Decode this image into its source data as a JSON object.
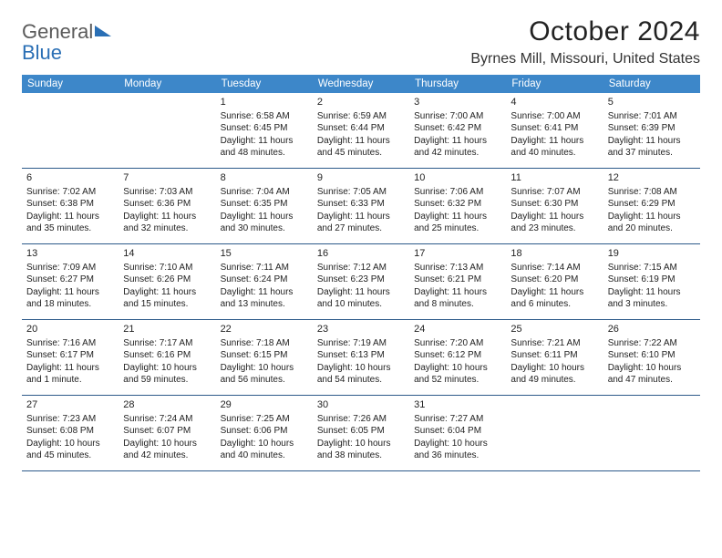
{
  "logo": {
    "text1": "General",
    "text2": "Blue"
  },
  "title": "October 2024",
  "location": "Byrnes Mill, Missouri, United States",
  "colors": {
    "header_bg": "#3d87c9",
    "header_fg": "#ffffff",
    "row_border": "#2d5a8a",
    "logo_gray": "#5a5a5a",
    "logo_blue": "#2a6fb5"
  },
  "dow": [
    "Sunday",
    "Monday",
    "Tuesday",
    "Wednesday",
    "Thursday",
    "Friday",
    "Saturday"
  ],
  "weeks": [
    [
      null,
      null,
      {
        "n": "1",
        "sr": "6:58 AM",
        "ss": "6:45 PM",
        "dl": "11 hours and 48 minutes."
      },
      {
        "n": "2",
        "sr": "6:59 AM",
        "ss": "6:44 PM",
        "dl": "11 hours and 45 minutes."
      },
      {
        "n": "3",
        "sr": "7:00 AM",
        "ss": "6:42 PM",
        "dl": "11 hours and 42 minutes."
      },
      {
        "n": "4",
        "sr": "7:00 AM",
        "ss": "6:41 PM",
        "dl": "11 hours and 40 minutes."
      },
      {
        "n": "5",
        "sr": "7:01 AM",
        "ss": "6:39 PM",
        "dl": "11 hours and 37 minutes."
      }
    ],
    [
      {
        "n": "6",
        "sr": "7:02 AM",
        "ss": "6:38 PM",
        "dl": "11 hours and 35 minutes."
      },
      {
        "n": "7",
        "sr": "7:03 AM",
        "ss": "6:36 PM",
        "dl": "11 hours and 32 minutes."
      },
      {
        "n": "8",
        "sr": "7:04 AM",
        "ss": "6:35 PM",
        "dl": "11 hours and 30 minutes."
      },
      {
        "n": "9",
        "sr": "7:05 AM",
        "ss": "6:33 PM",
        "dl": "11 hours and 27 minutes."
      },
      {
        "n": "10",
        "sr": "7:06 AM",
        "ss": "6:32 PM",
        "dl": "11 hours and 25 minutes."
      },
      {
        "n": "11",
        "sr": "7:07 AM",
        "ss": "6:30 PM",
        "dl": "11 hours and 23 minutes."
      },
      {
        "n": "12",
        "sr": "7:08 AM",
        "ss": "6:29 PM",
        "dl": "11 hours and 20 minutes."
      }
    ],
    [
      {
        "n": "13",
        "sr": "7:09 AM",
        "ss": "6:27 PM",
        "dl": "11 hours and 18 minutes."
      },
      {
        "n": "14",
        "sr": "7:10 AM",
        "ss": "6:26 PM",
        "dl": "11 hours and 15 minutes."
      },
      {
        "n": "15",
        "sr": "7:11 AM",
        "ss": "6:24 PM",
        "dl": "11 hours and 13 minutes."
      },
      {
        "n": "16",
        "sr": "7:12 AM",
        "ss": "6:23 PM",
        "dl": "11 hours and 10 minutes."
      },
      {
        "n": "17",
        "sr": "7:13 AM",
        "ss": "6:21 PM",
        "dl": "11 hours and 8 minutes."
      },
      {
        "n": "18",
        "sr": "7:14 AM",
        "ss": "6:20 PM",
        "dl": "11 hours and 6 minutes."
      },
      {
        "n": "19",
        "sr": "7:15 AM",
        "ss": "6:19 PM",
        "dl": "11 hours and 3 minutes."
      }
    ],
    [
      {
        "n": "20",
        "sr": "7:16 AM",
        "ss": "6:17 PM",
        "dl": "11 hours and 1 minute."
      },
      {
        "n": "21",
        "sr": "7:17 AM",
        "ss": "6:16 PM",
        "dl": "10 hours and 59 minutes."
      },
      {
        "n": "22",
        "sr": "7:18 AM",
        "ss": "6:15 PM",
        "dl": "10 hours and 56 minutes."
      },
      {
        "n": "23",
        "sr": "7:19 AM",
        "ss": "6:13 PM",
        "dl": "10 hours and 54 minutes."
      },
      {
        "n": "24",
        "sr": "7:20 AM",
        "ss": "6:12 PM",
        "dl": "10 hours and 52 minutes."
      },
      {
        "n": "25",
        "sr": "7:21 AM",
        "ss": "6:11 PM",
        "dl": "10 hours and 49 minutes."
      },
      {
        "n": "26",
        "sr": "7:22 AM",
        "ss": "6:10 PM",
        "dl": "10 hours and 47 minutes."
      }
    ],
    [
      {
        "n": "27",
        "sr": "7:23 AM",
        "ss": "6:08 PM",
        "dl": "10 hours and 45 minutes."
      },
      {
        "n": "28",
        "sr": "7:24 AM",
        "ss": "6:07 PM",
        "dl": "10 hours and 42 minutes."
      },
      {
        "n": "29",
        "sr": "7:25 AM",
        "ss": "6:06 PM",
        "dl": "10 hours and 40 minutes."
      },
      {
        "n": "30",
        "sr": "7:26 AM",
        "ss": "6:05 PM",
        "dl": "10 hours and 38 minutes."
      },
      {
        "n": "31",
        "sr": "7:27 AM",
        "ss": "6:04 PM",
        "dl": "10 hours and 36 minutes."
      },
      null,
      null
    ]
  ]
}
